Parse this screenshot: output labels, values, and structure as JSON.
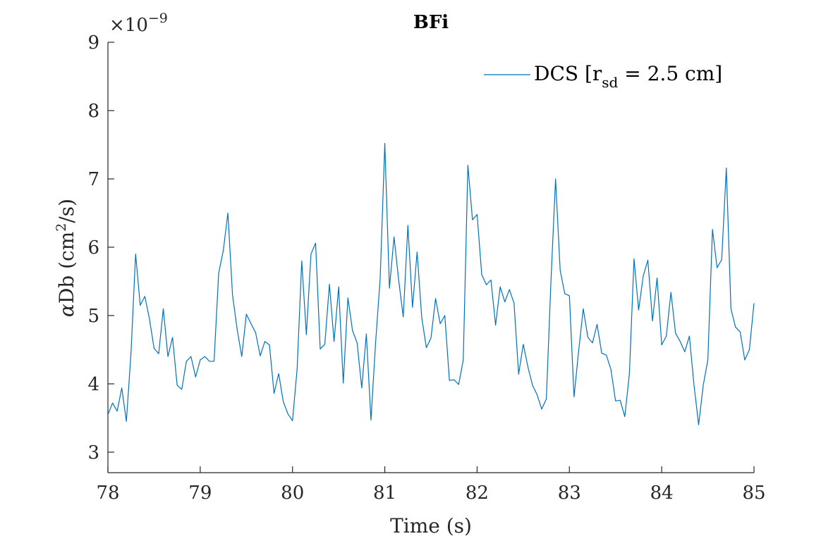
{
  "chart_data": {
    "type": "line",
    "title": "BFi",
    "xlabel": "Time (s)",
    "ylabel": "αDb (cm²/s)",
    "ylabel_parts": {
      "symbol": "α",
      "main": "Db (cm",
      "sup": "2",
      "end": "/s)"
    },
    "y_exponent": {
      "base": "×10",
      "power": "−9"
    },
    "xlim": [
      78,
      85
    ],
    "ylim": [
      2.7,
      9
    ],
    "xticks": [
      78,
      79,
      80,
      81,
      82,
      83,
      84,
      85
    ],
    "yticks": [
      3,
      4,
      5,
      6,
      7,
      8,
      9
    ],
    "legend": {
      "position": "top-right",
      "parts": {
        "prefix": "DCS [r",
        "sub": "sd",
        "suffix": " = 2.5 cm]"
      }
    },
    "grid": false,
    "series": [
      {
        "name": "DCS [rsd = 2.5 cm]",
        "color": "#0072BD",
        "x": [
          78.0,
          78.05,
          78.1,
          78.15,
          78.2,
          78.25,
          78.3,
          78.35,
          78.4,
          78.45,
          78.5,
          78.55,
          78.6,
          78.65,
          78.7,
          78.75,
          78.8,
          78.85,
          78.9,
          78.95,
          79.0,
          79.05,
          79.1,
          79.15,
          79.2,
          79.25,
          79.3,
          79.35,
          79.4,
          79.45,
          79.5,
          79.55,
          79.6,
          79.65,
          79.7,
          79.75,
          79.8,
          79.85,
          79.9,
          79.95,
          80.0,
          80.05,
          80.1,
          80.15,
          80.2,
          80.25,
          80.3,
          80.35,
          80.4,
          80.45,
          80.5,
          80.55,
          80.6,
          80.65,
          80.7,
          80.75,
          80.8,
          80.85,
          80.9,
          80.95,
          81.0,
          81.05,
          81.1,
          81.15,
          81.2,
          81.25,
          81.3,
          81.35,
          81.4,
          81.45,
          81.5,
          81.55,
          81.6,
          81.65,
          81.7,
          81.75,
          81.8,
          81.85,
          81.9,
          81.95,
          82.0,
          82.05,
          82.1,
          82.15,
          82.2,
          82.25,
          82.3,
          82.35,
          82.4,
          82.45,
          82.5,
          82.55,
          82.6,
          82.65,
          82.7,
          82.75,
          82.8,
          82.85,
          82.9,
          82.95,
          83.0,
          83.05,
          83.1,
          83.15,
          83.2,
          83.25,
          83.3,
          83.35,
          83.4,
          83.45,
          83.5,
          83.55,
          83.6,
          83.65,
          83.7,
          83.75,
          83.8,
          83.85,
          83.9,
          83.95,
          84.0,
          84.05,
          84.1,
          84.15,
          84.2,
          84.25,
          84.3,
          84.35,
          84.4,
          84.45,
          84.5,
          84.55,
          84.6,
          84.65,
          84.7,
          84.75,
          84.8,
          84.85,
          84.9,
          84.95,
          85.0
        ],
        "y": [
          3.55,
          3.72,
          3.6,
          3.94,
          3.45,
          4.45,
          5.9,
          5.15,
          5.28,
          4.95,
          4.52,
          4.44,
          5.1,
          4.4,
          4.68,
          3.98,
          3.92,
          4.33,
          4.4,
          4.1,
          4.35,
          4.4,
          4.33,
          4.33,
          5.62,
          5.95,
          6.5,
          5.3,
          4.8,
          4.4,
          5.02,
          4.88,
          4.75,
          4.41,
          4.62,
          4.57,
          3.86,
          4.15,
          3.74,
          3.56,
          3.46,
          4.22,
          5.8,
          4.72,
          5.9,
          6.06,
          4.51,
          4.58,
          5.46,
          4.62,
          5.42,
          4.01,
          5.26,
          4.78,
          4.6,
          3.94,
          4.73,
          3.47,
          4.6,
          5.55,
          7.52,
          5.4,
          6.15,
          5.52,
          4.98,
          6.32,
          5.12,
          5.93,
          4.97,
          4.53,
          4.67,
          5.25,
          4.88,
          5.0,
          4.05,
          4.06,
          3.99,
          4.35,
          7.2,
          6.4,
          6.48,
          5.6,
          5.45,
          5.52,
          4.86,
          5.42,
          5.2,
          5.38,
          5.18,
          4.14,
          4.58,
          4.25,
          3.98,
          3.84,
          3.63,
          3.78,
          5.5,
          7.0,
          5.66,
          5.32,
          5.29,
          3.81,
          4.48,
          5.1,
          4.68,
          4.6,
          4.87,
          4.45,
          4.42,
          4.21,
          3.75,
          3.76,
          3.52,
          4.15,
          5.83,
          5.08,
          5.58,
          5.81,
          4.92,
          5.55,
          4.57,
          4.7,
          5.34,
          4.74,
          4.62,
          4.47,
          4.7,
          3.98,
          3.4,
          3.98,
          4.35,
          6.26,
          5.7,
          5.82,
          7.16,
          5.1,
          4.83,
          4.76,
          4.35,
          4.5,
          5.18
        ]
      }
    ]
  }
}
